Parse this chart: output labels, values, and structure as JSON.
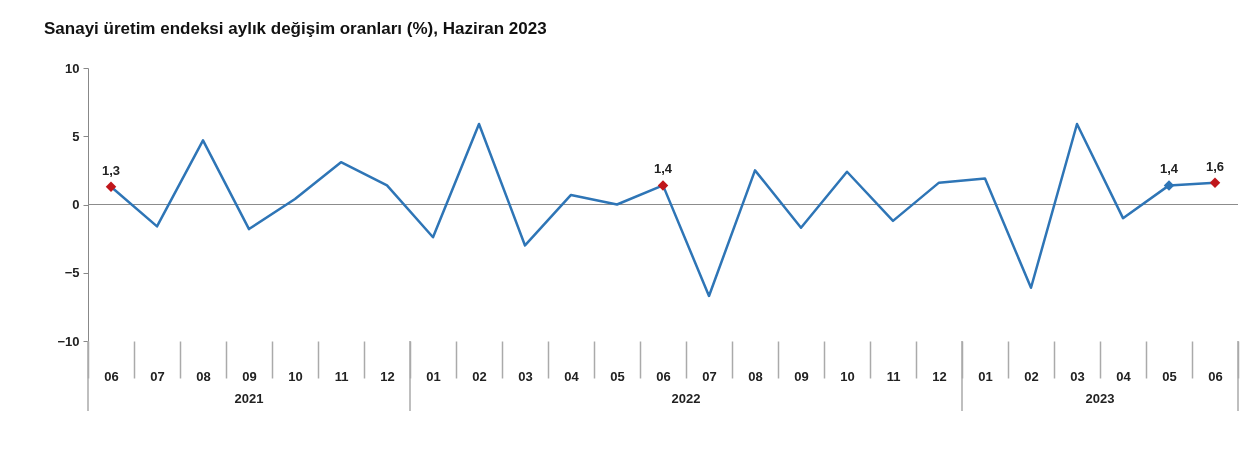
{
  "chart_data": {
    "type": "line",
    "title": "Sanayi üretim endeksi aylık değişim oranları (%), Haziran 2023",
    "categories": [
      "06",
      "07",
      "08",
      "09",
      "10",
      "11",
      "12",
      "01",
      "02",
      "03",
      "04",
      "05",
      "06",
      "07",
      "08",
      "09",
      "10",
      "11",
      "12",
      "01",
      "02",
      "03",
      "04",
      "05",
      "06"
    ],
    "series": [
      {
        "color": "#2e75b6",
        "values": [
          1.3,
          -1.6,
          4.7,
          -1.8,
          0.4,
          3.1,
          1.4,
          -2.4,
          5.9,
          -3.0,
          0.7,
          0.0,
          1.4,
          -6.7,
          2.5,
          -1.7,
          2.4,
          -1.2,
          1.6,
          1.9,
          -6.1,
          5.9,
          -1.0,
          1.4,
          1.6
        ],
        "colors": [
          "#c0161b",
          null,
          null,
          null,
          null,
          null,
          null,
          null,
          null,
          null,
          null,
          null,
          "#c0161b",
          null,
          null,
          null,
          null,
          null,
          null,
          null,
          null,
          null,
          null,
          "#2e75b6",
          "#c0161b"
        ],
        "value_labels": [
          "1,3",
          null,
          null,
          null,
          null,
          null,
          null,
          null,
          null,
          null,
          null,
          null,
          "1,4",
          null,
          null,
          null,
          null,
          null,
          null,
          null,
          null,
          null,
          null,
          "1,4",
          "1,6"
        ]
      }
    ],
    "ylim": [
      -10,
      10
    ],
    "yticks": [
      -10,
      -5,
      0,
      5,
      10
    ],
    "ref_lines": [
      {
        "axis": "y",
        "value": 0,
        "color": "#8c8c8c"
      }
    ],
    "annotations": [
      "2021",
      "2022",
      "2023"
    ]
  }
}
